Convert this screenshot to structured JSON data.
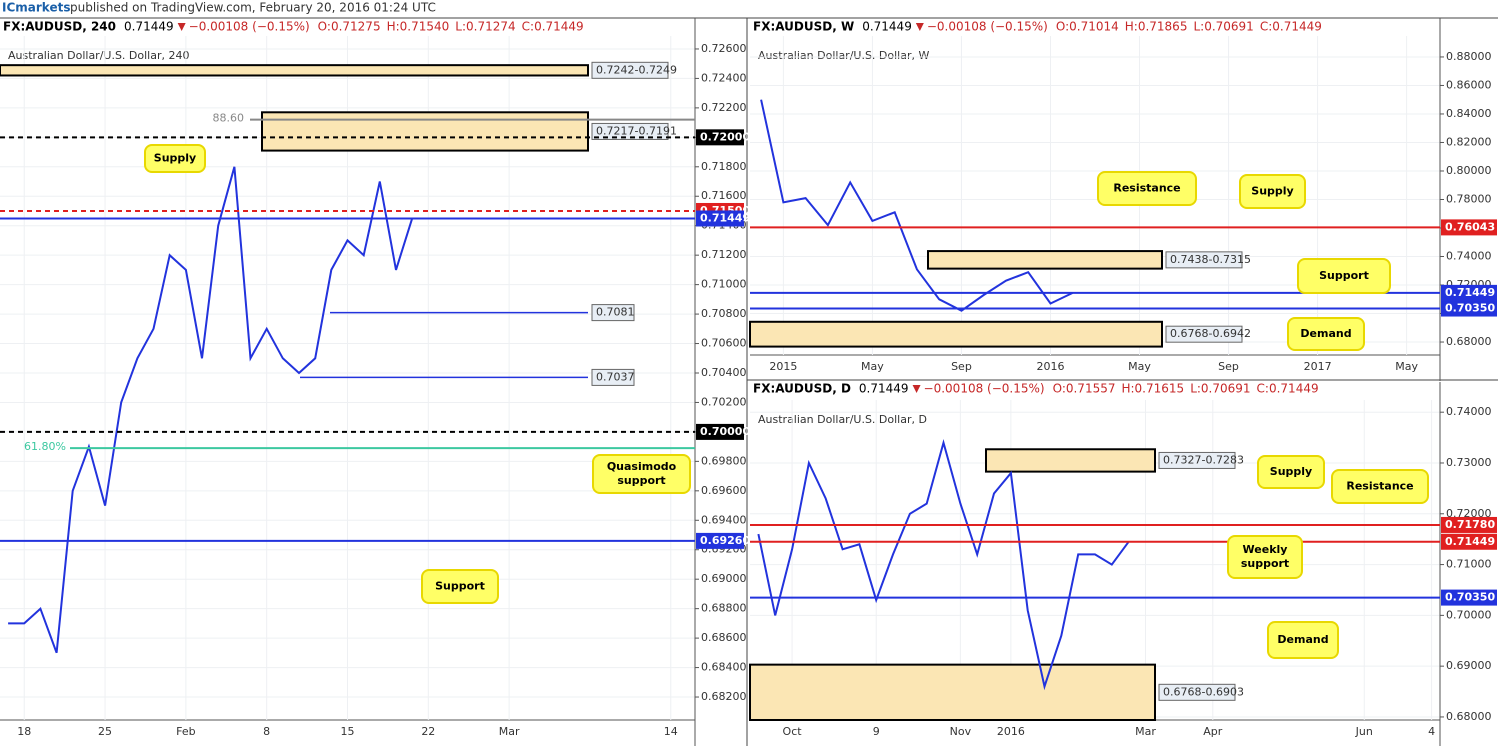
{
  "header": {
    "brand": "ICmarkets",
    "published": "published on TradingView.com, February 20, 2016 01:24 UTC"
  },
  "chart_data": [
    {
      "type": "line",
      "symbol": "FX:AUDUSD, 240",
      "last": "0.71449",
      "change": "−0.00108 (−0.15%)",
      "ohlc": [
        "O:0.71275",
        "H:0.71540",
        "L:0.71274",
        "C:0.71449"
      ],
      "subtitle": "Australian Dollar/U.S. Dollar, 240",
      "color": "#2233dd",
      "categories": [
        null,
        "18",
        null,
        null,
        null,
        null,
        "25",
        null,
        null,
        null,
        null,
        "Feb",
        null,
        null,
        null,
        null,
        "8",
        null,
        null,
        null,
        null,
        "15",
        null,
        null,
        null,
        null,
        "22",
        null,
        null,
        null,
        null,
        "Mar",
        null,
        null,
        null,
        null,
        null,
        null,
        null,
        null,
        null,
        "14",
        null
      ],
      "values": [
        0.687,
        0.687,
        0.688,
        0.685,
        0.696,
        0.699,
        0.695,
        0.702,
        0.705,
        0.707,
        0.712,
        0.711,
        0.705,
        0.714,
        0.718,
        0.705,
        0.707,
        0.705,
        0.704,
        0.705,
        0.711,
        0.713,
        0.712,
        0.717,
        0.711,
        0.7145,
        null,
        null,
        null,
        null,
        null,
        null,
        null,
        null,
        null,
        null,
        null,
        null,
        null,
        null,
        null,
        null,
        null
      ],
      "ylim": [
        0.68044,
        0.72688
      ],
      "yticks": [
        {
          "value": 0.682,
          "label": "0.68200"
        },
        {
          "value": 0.684,
          "label": "0.68400"
        },
        {
          "value": 0.686,
          "label": "0.68600"
        },
        {
          "value": 0.688,
          "label": "0.68800"
        },
        {
          "value": 0.69,
          "label": "0.69000"
        },
        {
          "value": 0.692,
          "label": "0.69200"
        },
        {
          "value": 0.694,
          "label": "0.69400"
        },
        {
          "value": 0.696,
          "label": "0.69600"
        },
        {
          "value": 0.698,
          "label": "0.69800"
        },
        {
          "value": 0.7,
          "label": "0.70000"
        },
        {
          "value": 0.702,
          "label": "0.70200"
        },
        {
          "value": 0.704,
          "label": "0.70400"
        },
        {
          "value": 0.706,
          "label": "0.70600"
        },
        {
          "value": 0.708,
          "label": "0.70800"
        },
        {
          "value": 0.71,
          "label": "0.71000"
        },
        {
          "value": 0.712,
          "label": "0.71200"
        },
        {
          "value": 0.714,
          "label": "0.71400"
        },
        {
          "value": 0.716,
          "label": "0.71600"
        },
        {
          "value": 0.718,
          "label": "0.71800"
        },
        {
          "value": 0.72,
          "label": "0.72000"
        },
        {
          "value": 0.722,
          "label": "0.72200"
        },
        {
          "value": 0.724,
          "label": "0.72400"
        },
        {
          "value": 0.726,
          "label": "0.72600"
        }
      ],
      "levels": [
        {
          "value": 0.72,
          "label": "0.72000",
          "color": "#000000",
          "kind": "tag"
        },
        {
          "value": 0.715,
          "label": "0.71500",
          "color": "#e02020",
          "kind": "tag"
        },
        {
          "value": 0.71449,
          "label": "0.71449",
          "color": "#2233dd",
          "kind": "tag"
        },
        {
          "value": 0.7,
          "label": "0.70000",
          "color": "#000000",
          "kind": "tag"
        },
        {
          "value": 0.6926,
          "label": "0.69260",
          "color": "#2233dd",
          "kind": "tag"
        },
        {
          "value": 0.7081,
          "label": "0.7081",
          "color": "#2233dd",
          "kind": "box"
        },
        {
          "value": 0.7037,
          "label": "0.7037",
          "color": "#2233dd",
          "kind": "box"
        },
        {
          "value": 0.6989,
          "label": "61.80%",
          "color": "#3cc8a0",
          "kind": "text"
        },
        {
          "value": 0.7212,
          "label": "88.60",
          "color": "#888888",
          "kind": "text"
        }
      ],
      "zones": [
        {
          "label": "0.7242-0.7249",
          "low": 0.7242,
          "high": 0.7249
        },
        {
          "label": "0.7217-0.7191",
          "low": 0.7191,
          "high": 0.7217
        }
      ],
      "callouts": [
        "Supply",
        "Quasimodo support",
        "Support"
      ]
    },
    {
      "type": "line",
      "symbol": "FX:AUDUSD, W",
      "last": "0.71449",
      "change": "−0.00108 (−0.15%)",
      "ohlc": [
        "O:0.71014",
        "H:0.71865",
        "L:0.70691",
        "C:0.71449"
      ],
      "subtitle": "Australian Dollar/U.S. Dollar, W",
      "color": "#2233dd",
      "categories": [
        null,
        "2015",
        null,
        null,
        null,
        "May",
        null,
        null,
        null,
        "Sep",
        null,
        null,
        null,
        "2016",
        null,
        null,
        null,
        "May",
        null,
        null,
        null,
        "Sep",
        null,
        null,
        null,
        "2017",
        null,
        null,
        null,
        "May",
        null
      ],
      "values": [
        0.85,
        0.778,
        0.781,
        0.762,
        0.792,
        0.765,
        0.771,
        0.731,
        0.71,
        0.702,
        0.713,
        0.723,
        0.729,
        0.707,
        0.7145,
        null,
        null,
        null,
        null,
        null,
        null,
        null,
        null,
        null,
        null,
        null,
        null,
        null,
        null,
        null,
        null
      ],
      "ylim": [
        0.6709,
        0.8947
      ],
      "yticks": [
        {
          "value": 0.68,
          "label": "0.68000"
        },
        {
          "value": 0.7,
          "label": "0.70000"
        },
        {
          "value": 0.72,
          "label": "0.72000"
        },
        {
          "value": 0.74,
          "label": "0.74000"
        },
        {
          "value": 0.76,
          "label": "0.76000"
        },
        {
          "value": 0.78,
          "label": "0.78000"
        },
        {
          "value": 0.8,
          "label": "0.80000"
        },
        {
          "value": 0.82,
          "label": "0.82000"
        },
        {
          "value": 0.84,
          "label": "0.84000"
        },
        {
          "value": 0.86,
          "label": "0.86000"
        },
        {
          "value": 0.88,
          "label": "0.88000"
        }
      ],
      "levels": [
        {
          "value": 0.76043,
          "label": "0.76043",
          "color": "#e02020",
          "kind": "tag"
        },
        {
          "value": 0.71449,
          "label": "0.71449",
          "color": "#2233dd",
          "kind": "tag"
        },
        {
          "value": 0.7035,
          "label": "0.70350",
          "color": "#2233dd",
          "kind": "tag"
        }
      ],
      "zones": [
        {
          "label": "0.7438-0.7315",
          "low": 0.7315,
          "high": 0.7438
        },
        {
          "label": "0.6768-0.6942",
          "low": 0.6768,
          "high": 0.6942
        }
      ],
      "callouts": [
        "Resistance",
        "Supply",
        "Support",
        "Demand"
      ]
    },
    {
      "type": "line",
      "symbol": "FX:AUDUSD, D",
      "last": "0.71449",
      "change": "−0.00108 (−0.15%)",
      "ohlc": [
        "O:0.71557",
        "H:0.71615",
        "L:0.70691",
        "C:0.71449"
      ],
      "subtitle": "Australian Dollar/U.S. Dollar, D",
      "color": "#2233dd",
      "categories": [
        null,
        null,
        "Oct",
        null,
        null,
        null,
        null,
        "9",
        null,
        null,
        null,
        null,
        "Nov",
        null,
        null,
        "2016",
        null,
        null,
        null,
        null,
        null,
        null,
        null,
        "Mar",
        null,
        null,
        null,
        "Apr",
        null,
        null,
        null,
        null,
        null,
        null,
        null,
        null,
        "Jun",
        null,
        null,
        null,
        "4"
      ],
      "values": [
        0.716,
        0.7,
        0.713,
        0.73,
        0.723,
        0.713,
        0.714,
        0.703,
        0.712,
        0.72,
        0.722,
        0.734,
        0.722,
        0.712,
        0.724,
        0.728,
        0.701,
        0.686,
        0.696,
        0.712,
        0.712,
        0.71,
        0.7145,
        null,
        null,
        null,
        null,
        null,
        null,
        null,
        null,
        null,
        null,
        null,
        null,
        null,
        null,
        null,
        null,
        null,
        null
      ],
      "ylim": [
        0.6794,
        0.7424
      ],
      "yticks": [
        {
          "value": 0.68,
          "label": "0.68000"
        },
        {
          "value": 0.69,
          "label": "0.69000"
        },
        {
          "value": 0.7,
          "label": "0.70000"
        },
        {
          "value": 0.71,
          "label": "0.71000"
        },
        {
          "value": 0.72,
          "label": "0.72000"
        },
        {
          "value": 0.73,
          "label": "0.73000"
        },
        {
          "value": 0.74,
          "label": "0.74000"
        }
      ],
      "levels": [
        {
          "value": 0.7178,
          "label": "0.71780",
          "color": "#e02020",
          "kind": "tag"
        },
        {
          "value": 0.71449,
          "label": "0.71449",
          "color": "#e02020",
          "kind": "tag"
        },
        {
          "value": 0.7035,
          "label": "0.70350",
          "color": "#2233dd",
          "kind": "tag"
        }
      ],
      "zones": [
        {
          "label": "0.7327-0.7283",
          "low": 0.7283,
          "high": 0.7327
        },
        {
          "label": "0.6768-0.6903",
          "low": 0.6768,
          "high": 0.6903
        }
      ],
      "callouts": [
        "Supply",
        "Resistance",
        "Weekly support",
        "Demand"
      ]
    }
  ]
}
